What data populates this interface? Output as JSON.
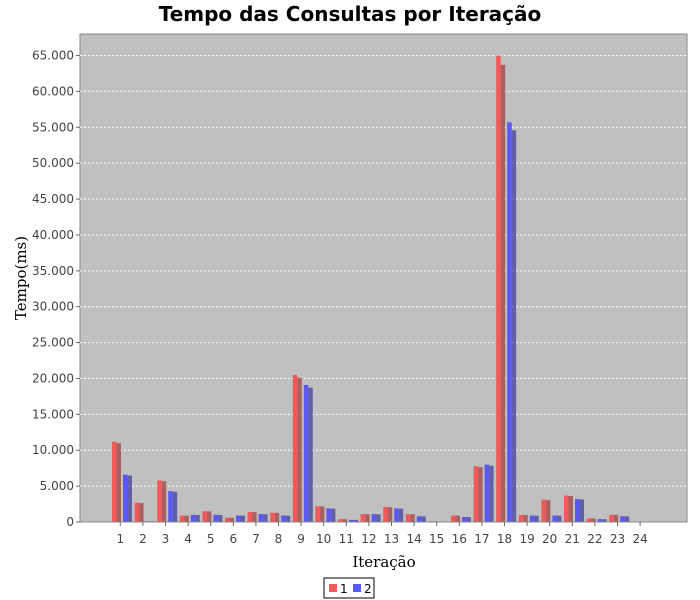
{
  "chart_data": {
    "type": "bar",
    "title": "Tempo das Consultas por Iteração",
    "xlabel": "Iteração",
    "ylabel": "Tempo(ms)",
    "categories": [
      "1",
      "2",
      "3",
      "4",
      "5",
      "6",
      "7",
      "8",
      "9",
      "10",
      "11",
      "12",
      "13",
      "14",
      "15",
      "16",
      "17",
      "18",
      "19",
      "20",
      "21",
      "22",
      "23",
      "24"
    ],
    "series": [
      {
        "name": "1",
        "color": "#f25a5a",
        "values": [
          11200,
          2700,
          5800,
          900,
          1500,
          600,
          1400,
          1300,
          20500,
          2200,
          400,
          1100,
          2100,
          1100,
          100,
          900,
          7800,
          65000,
          1000,
          3100,
          3700,
          500,
          1000,
          0
        ]
      },
      {
        "name": "2",
        "color": "#5a5af2",
        "values": [
          6600,
          100,
          4300,
          1000,
          1000,
          900,
          1100,
          900,
          19100,
          1900,
          300,
          1100,
          1900,
          800,
          0,
          700,
          8000,
          55700,
          900,
          900,
          3200,
          400,
          800,
          0
        ]
      }
    ],
    "yticks": [
      "0",
      "5.000",
      "10.000",
      "15.000",
      "20.000",
      "25.000",
      "30.000",
      "35.000",
      "40.000",
      "45.000",
      "50.000",
      "55.000",
      "60.000",
      "65.000"
    ],
    "ylim": [
      0,
      68000
    ],
    "grid": true,
    "legend": "bottom-center",
    "colors": {
      "plot_background": "#c0c0c0",
      "grid": "#ffffff"
    }
  }
}
